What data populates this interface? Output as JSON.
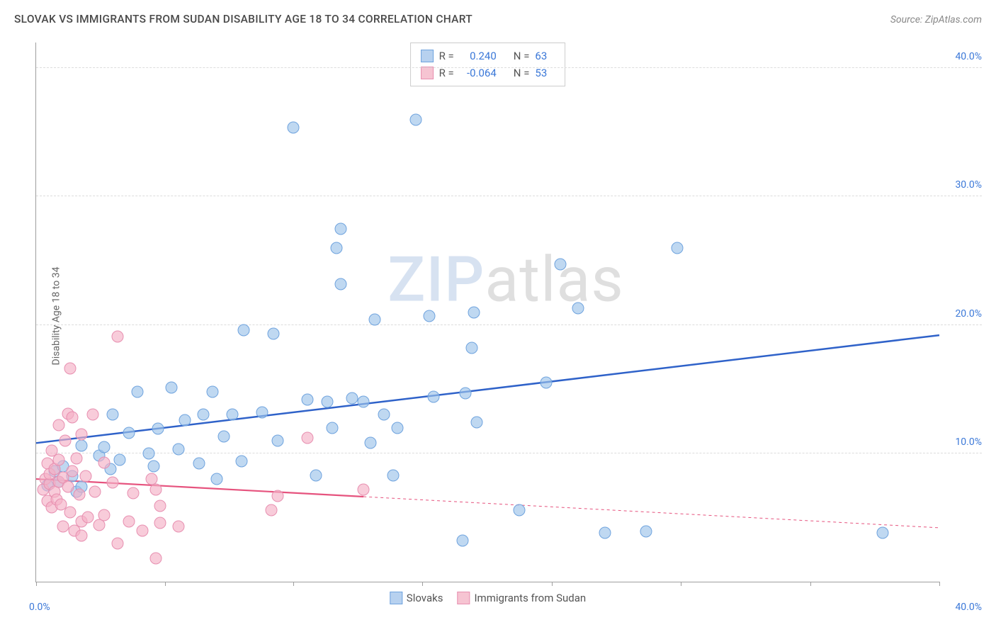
{
  "title": "SLOVAK VS IMMIGRANTS FROM SUDAN DISABILITY AGE 18 TO 34 CORRELATION CHART",
  "source": "Source: ZipAtlas.com",
  "y_axis_label": "Disability Age 18 to 34",
  "watermark": {
    "part1": "ZIP",
    "part2": "atlas"
  },
  "axes": {
    "xlim": [
      0,
      40
    ],
    "ylim": [
      0,
      42
    ],
    "x_tick_label_left": "0.0%",
    "x_tick_label_right": "40.0%",
    "x_minor_ticks": [
      0,
      5.7,
      11.4,
      17.1,
      22.85,
      28.55,
      34.3,
      40
    ],
    "y_ticks": [
      {
        "v": 10,
        "label": "10.0%"
      },
      {
        "v": 20,
        "label": "20.0%"
      },
      {
        "v": 30,
        "label": "30.0%"
      },
      {
        "v": 40,
        "label": "40.0%"
      }
    ],
    "tick_label_color": "#3b78d8",
    "label_fontsize": 14
  },
  "legend_top": {
    "rows": [
      {
        "swatch_fill": "#b7d1ef",
        "swatch_border": "#6fa3de",
        "r_label": "R =",
        "r_value": "0.240",
        "n_label": "N =",
        "n_value": "63"
      },
      {
        "swatch_fill": "#f6c4d2",
        "swatch_border": "#e78fb0",
        "r_label": "R =",
        "r_value": "-0.064",
        "n_label": "N =",
        "n_value": "53"
      }
    ],
    "value_color": "#3b78d8"
  },
  "legend_bottom": {
    "items": [
      {
        "swatch_fill": "#b7d1ef",
        "swatch_border": "#6fa3de",
        "label": "Slovaks"
      },
      {
        "swatch_fill": "#f6c4d2",
        "swatch_border": "#e78fb0",
        "label": "Immigrants from Sudan"
      }
    ]
  },
  "series": [
    {
      "name": "slovaks",
      "marker_fill": "rgba(157,195,234,0.65)",
      "marker_stroke": "#6fa3de",
      "marker_radius": 8.5,
      "trend": {
        "y_at_x0": 10.8,
        "y_at_x40": 19.2,
        "color": "#2f62c9",
        "width": 2.5,
        "solid_until_x": 40
      },
      "points": [
        [
          0.5,
          7.5
        ],
        [
          0.8,
          8.6
        ],
        [
          1.0,
          7.8
        ],
        [
          1.2,
          9.0
        ],
        [
          1.6,
          8.2
        ],
        [
          1.8,
          7.0
        ],
        [
          2.0,
          10.6
        ],
        [
          2.0,
          7.4
        ],
        [
          2.8,
          9.8
        ],
        [
          3.0,
          10.5
        ],
        [
          3.3,
          8.8
        ],
        [
          3.4,
          13.0
        ],
        [
          3.7,
          9.5
        ],
        [
          4.1,
          11.6
        ],
        [
          4.5,
          14.8
        ],
        [
          5.0,
          10.0
        ],
        [
          5.2,
          9.0
        ],
        [
          5.4,
          11.9
        ],
        [
          6.0,
          15.1
        ],
        [
          6.3,
          10.3
        ],
        [
          6.6,
          12.6
        ],
        [
          7.2,
          9.2
        ],
        [
          7.4,
          13.0
        ],
        [
          7.8,
          14.8
        ],
        [
          8.0,
          8.0
        ],
        [
          8.3,
          11.3
        ],
        [
          8.7,
          13.0
        ],
        [
          9.1,
          9.4
        ],
        [
          9.2,
          19.6
        ],
        [
          10.0,
          13.2
        ],
        [
          10.5,
          19.3
        ],
        [
          10.7,
          11.0
        ],
        [
          11.4,
          35.4
        ],
        [
          12.0,
          14.2
        ],
        [
          12.4,
          8.3
        ],
        [
          12.9,
          14.0
        ],
        [
          13.1,
          12.0
        ],
        [
          13.3,
          26.0
        ],
        [
          13.5,
          23.2
        ],
        [
          13.5,
          27.5
        ],
        [
          14.0,
          14.3
        ],
        [
          14.5,
          14.0
        ],
        [
          14.8,
          10.8
        ],
        [
          15.0,
          20.4
        ],
        [
          15.4,
          13.0
        ],
        [
          15.8,
          8.3
        ],
        [
          16.0,
          12.0
        ],
        [
          16.8,
          36.0
        ],
        [
          17.4,
          20.7
        ],
        [
          17.6,
          14.4
        ],
        [
          19.0,
          14.7
        ],
        [
          19.3,
          18.2
        ],
        [
          19.4,
          21.0
        ],
        [
          19.5,
          12.4
        ],
        [
          21.4,
          5.6
        ],
        [
          22.6,
          15.5
        ],
        [
          23.2,
          24.7
        ],
        [
          24.0,
          21.3
        ],
        [
          25.2,
          3.8
        ],
        [
          27.0,
          3.9
        ],
        [
          28.4,
          26.0
        ],
        [
          37.5,
          3.8
        ],
        [
          18.9,
          3.2
        ]
      ]
    },
    {
      "name": "sudan",
      "marker_fill": "rgba(244,176,198,0.65)",
      "marker_stroke": "#e78fb0",
      "marker_radius": 8.5,
      "trend": {
        "y_at_x0": 8.0,
        "y_at_x40": 4.2,
        "color": "#e6537e",
        "width": 2.2,
        "solid_until_x": 14.5
      },
      "points": [
        [
          0.3,
          7.2
        ],
        [
          0.4,
          8.0
        ],
        [
          0.5,
          6.3
        ],
        [
          0.5,
          9.2
        ],
        [
          0.6,
          7.6
        ],
        [
          0.6,
          8.4
        ],
        [
          0.7,
          5.8
        ],
        [
          0.7,
          10.2
        ],
        [
          0.8,
          7.0
        ],
        [
          0.8,
          8.8
        ],
        [
          0.9,
          6.4
        ],
        [
          1.0,
          9.5
        ],
        [
          1.0,
          7.8
        ],
        [
          1.0,
          12.2
        ],
        [
          1.1,
          6.0
        ],
        [
          1.2,
          8.1
        ],
        [
          1.2,
          4.3
        ],
        [
          1.3,
          11.0
        ],
        [
          1.4,
          7.4
        ],
        [
          1.4,
          13.1
        ],
        [
          1.5,
          5.4
        ],
        [
          1.5,
          16.6
        ],
        [
          1.6,
          8.6
        ],
        [
          1.6,
          12.8
        ],
        [
          1.7,
          4.0
        ],
        [
          1.8,
          9.6
        ],
        [
          1.9,
          6.8
        ],
        [
          2.0,
          11.5
        ],
        [
          2.0,
          4.7
        ],
        [
          2.0,
          3.6
        ],
        [
          2.2,
          8.2
        ],
        [
          2.3,
          5.0
        ],
        [
          2.5,
          13.0
        ],
        [
          2.6,
          7.0
        ],
        [
          2.8,
          4.4
        ],
        [
          3.0,
          9.3
        ],
        [
          3.0,
          5.2
        ],
        [
          3.4,
          7.7
        ],
        [
          3.6,
          3.0
        ],
        [
          3.6,
          19.1
        ],
        [
          4.1,
          4.7
        ],
        [
          4.3,
          6.9
        ],
        [
          4.7,
          4.0
        ],
        [
          5.1,
          8.0
        ],
        [
          5.3,
          7.2
        ],
        [
          5.3,
          1.8
        ],
        [
          5.5,
          4.6
        ],
        [
          5.5,
          5.9
        ],
        [
          6.3,
          4.3
        ],
        [
          10.4,
          5.6
        ],
        [
          10.7,
          6.7
        ],
        [
          12.0,
          11.2
        ],
        [
          14.5,
          7.2
        ]
      ]
    }
  ]
}
